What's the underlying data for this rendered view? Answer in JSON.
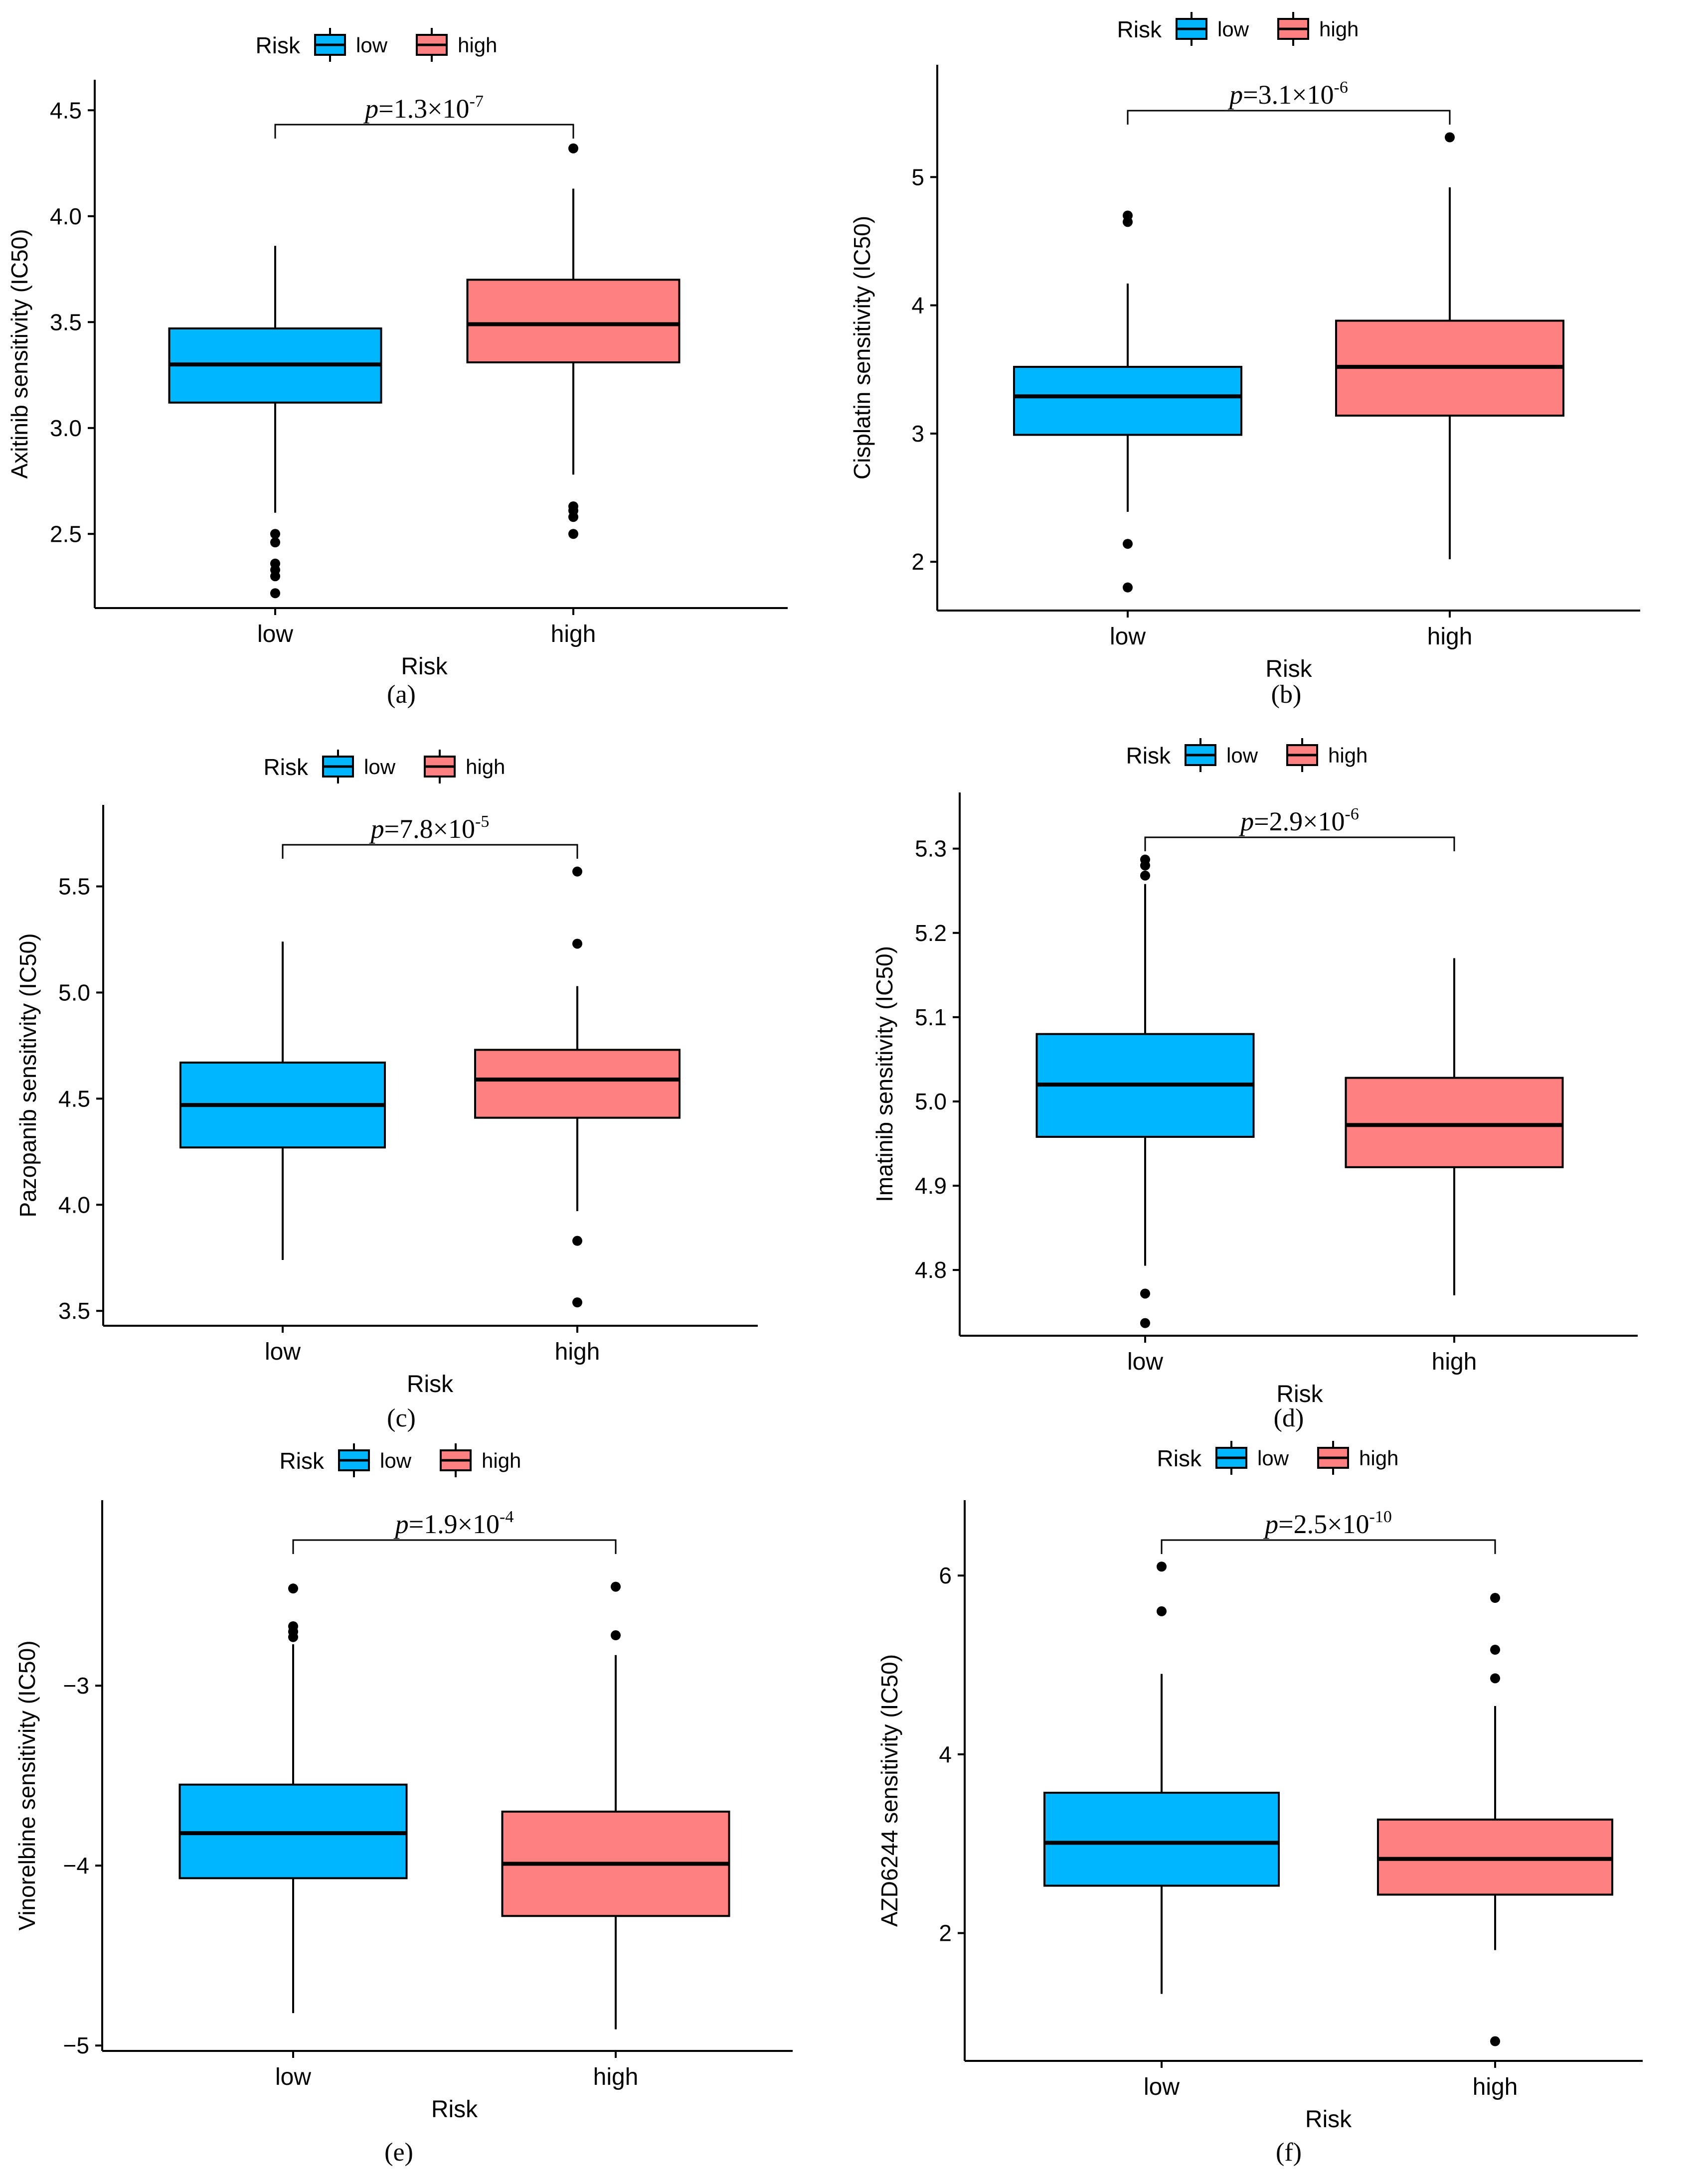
{
  "chart_data": [
    {
      "type": "box",
      "panel_label": "(a)",
      "legend": {
        "title": "Risk",
        "entries": [
          {
            "label": "low",
            "color": "#00B6FF"
          },
          {
            "label": "high",
            "color": "#FF8080"
          }
        ]
      },
      "pvalue": {
        "prefix": "p",
        "text": "=1.3×10",
        "exp": "-7"
      },
      "ylabel": "Axitinib sensitivity (IC50)",
      "xlabel": "Risk",
      "ylim": [
        2.15,
        4.55
      ],
      "yticks": [
        "2.5",
        "3.0",
        "3.5",
        "4.0",
        "4.5"
      ],
      "categories": [
        "low",
        "high"
      ],
      "boxes": [
        {
          "q1": 3.12,
          "median": 3.3,
          "q3": 3.47,
          "whisker_low": 2.6,
          "whisker_high": 3.86,
          "outliers": [
            2.22,
            2.3,
            2.33,
            2.36,
            2.46,
            2.5
          ]
        },
        {
          "q1": 3.31,
          "median": 3.49,
          "q3": 3.7,
          "whisker_low": 2.78,
          "whisker_high": 4.13,
          "outliers": [
            2.5,
            2.58,
            2.61,
            2.63,
            4.32
          ]
        }
      ]
    },
    {
      "type": "box",
      "panel_label": "(b)",
      "legend": {
        "title": "Risk",
        "entries": [
          {
            "label": "low",
            "color": "#00B6FF"
          },
          {
            "label": "high",
            "color": "#FF8080"
          }
        ]
      },
      "pvalue": {
        "prefix": "p",
        "text": "=3.1×10",
        "exp": "-6"
      },
      "ylabel": "Cisplatin sensitivity (IC50)",
      "xlabel": "Risk",
      "ylim": [
        1.62,
        5.72
      ],
      "yticks": [
        "2",
        "3",
        "4",
        "5"
      ],
      "categories": [
        "low",
        "high"
      ],
      "boxes": [
        {
          "q1": 2.99,
          "median": 3.29,
          "q3": 3.52,
          "whisker_low": 2.39,
          "whisker_high": 4.17,
          "outliers": [
            1.8,
            2.14,
            4.65,
            4.7
          ]
        },
        {
          "q1": 3.14,
          "median": 3.52,
          "q3": 3.88,
          "whisker_low": 2.02,
          "whisker_high": 4.92,
          "outliers": [
            5.31
          ]
        }
      ]
    },
    {
      "type": "box",
      "panel_label": "(c)",
      "legend": {
        "title": "Risk",
        "entries": [
          {
            "label": "low",
            "color": "#00B6FF"
          },
          {
            "label": "high",
            "color": "#FF8080"
          }
        ]
      },
      "pvalue": {
        "prefix": "p",
        "text": "=7.8×10",
        "exp": "-5"
      },
      "ylabel": "Pazopanib sensitivity (IC50)",
      "xlabel": "Risk",
      "ylim": [
        3.43,
        5.79
      ],
      "yticks": [
        "3.5",
        "4.0",
        "4.5",
        "5.0",
        "5.5"
      ],
      "categories": [
        "low",
        "high"
      ],
      "boxes": [
        {
          "q1": 4.27,
          "median": 4.47,
          "q3": 4.67,
          "whisker_low": 3.74,
          "whisker_high": 5.24,
          "outliers": []
        },
        {
          "q1": 4.41,
          "median": 4.59,
          "q3": 4.73,
          "whisker_low": 3.97,
          "whisker_high": 5.03,
          "outliers": [
            3.54,
            3.83,
            5.23,
            5.57
          ]
        }
      ]
    },
    {
      "type": "box",
      "panel_label": "(d)",
      "legend": {
        "title": "Risk",
        "entries": [
          {
            "label": "low",
            "color": "#00B6FF"
          },
          {
            "label": "high",
            "color": "#FF8080"
          }
        ]
      },
      "pvalue": {
        "prefix": "p",
        "text": "=2.9×10",
        "exp": "-6"
      },
      "ylabel": "Imatinib sensitivity (IC50)",
      "xlabel": "Risk",
      "ylim": [
        4.722,
        5.343
      ],
      "yticks": [
        "4.8",
        "4.9",
        "5.0",
        "5.1",
        "5.2",
        "5.3"
      ],
      "categories": [
        "low",
        "high"
      ],
      "boxes": [
        {
          "q1": 4.958,
          "median": 5.02,
          "q3": 5.08,
          "whisker_low": 4.805,
          "whisker_high": 5.258,
          "outliers": [
            4.737,
            4.772,
            5.268,
            5.28,
            5.287
          ]
        },
        {
          "q1": 4.922,
          "median": 4.972,
          "q3": 5.028,
          "whisker_low": 4.77,
          "whisker_high": 5.17,
          "outliers": []
        }
      ]
    },
    {
      "type": "box",
      "panel_label": "(e)",
      "legend": {
        "title": "Risk",
        "entries": [
          {
            "label": "low",
            "color": "#00B6FF"
          },
          {
            "label": "high",
            "color": "#FF8080"
          }
        ]
      },
      "pvalue": {
        "prefix": "p",
        "text": "=1.9×10",
        "exp": "-4"
      },
      "ylabel": "Vinorelbine sensitivity (IC50)",
      "xlabel": "Risk",
      "ylim": [
        -5.03,
        -2.08
      ],
      "yticks": [
        "−5",
        "−4",
        "−3"
      ],
      "ytick_values": [
        -5,
        -4,
        -3
      ],
      "categories": [
        "low",
        "high"
      ],
      "boxes": [
        {
          "q1": -4.07,
          "median": -3.82,
          "q3": -3.55,
          "whisker_low": -4.82,
          "whisker_high": -2.77,
          "outliers": [
            -2.73,
            -2.7,
            -2.67,
            -2.46
          ]
        },
        {
          "q1": -4.28,
          "median": -3.99,
          "q3": -3.7,
          "whisker_low": -4.91,
          "whisker_high": -2.83,
          "outliers": [
            -2.72,
            -2.45
          ]
        }
      ]
    },
    {
      "type": "box",
      "panel_label": "(f)",
      "legend": {
        "title": "Risk",
        "entries": [
          {
            "label": "low",
            "color": "#00B6FF"
          },
          {
            "label": "high",
            "color": "#FF8080"
          }
        ]
      },
      "pvalue": {
        "prefix": "p",
        "text": "=2.5×10",
        "exp": "-10"
      },
      "ylabel": "AZD6244 sensitivity (IC50)",
      "xlabel": "Risk",
      "ylim": [
        0.57,
        6.62
      ],
      "yticks": [
        "2",
        "4",
        "6"
      ],
      "categories": [
        "low",
        "high"
      ],
      "boxes": [
        {
          "q1": 2.53,
          "median": 3.01,
          "q3": 3.57,
          "whisker_low": 1.32,
          "whisker_high": 4.9,
          "outliers": [
            5.6,
            6.1
          ]
        },
        {
          "q1": 2.43,
          "median": 2.83,
          "q3": 3.27,
          "whisker_low": 1.81,
          "whisker_high": 4.54,
          "outliers": [
            0.79,
            4.85,
            5.17,
            5.75
          ]
        }
      ]
    }
  ]
}
